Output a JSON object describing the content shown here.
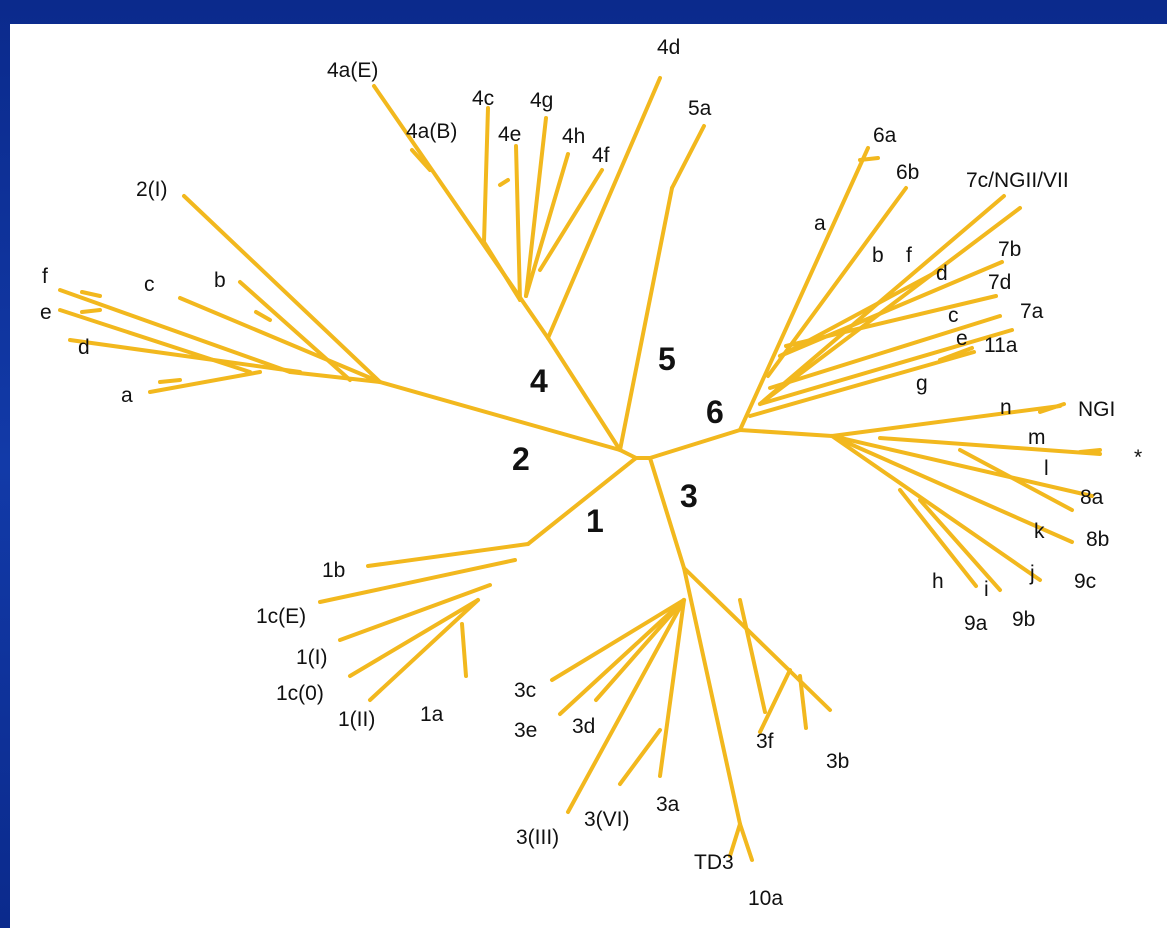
{
  "tree": {
    "branch_color": "#f2b81e",
    "background": "#ffffff",
    "frame_color": "#123aa8",
    "clades": {
      "c1": "1",
      "c2": "2",
      "c3": "3",
      "c4": "4",
      "c5": "5",
      "c6": "6"
    },
    "leaves": {
      "l_1b": "1b",
      "l_1cE": "1c(E)",
      "l_1I": "1(I)",
      "l_1c0": "1c(0)",
      "l_1II": "1(II)",
      "l_1a": "1a",
      "l_2I": "2(I)",
      "l_2f": "f",
      "l_2e": "e",
      "l_2d": "d",
      "l_2c": "c",
      "l_2b": "b",
      "l_2a": "a",
      "l_4aE": "4a(E)",
      "l_4aB": "4a(B)",
      "l_4c": "4c",
      "l_4e": "4e",
      "l_4g": "4g",
      "l_4h": "4h",
      "l_4f": "4f",
      "l_4d": "4d",
      "l_5a": "5a",
      "l_6a": "6a",
      "l_6b": "6b",
      "l_6la": "a",
      "l_6lb": "b",
      "l_6lf": "f",
      "l_7c": "7c/NGII/VII",
      "l_7b": "7b",
      "l_6ld": "d",
      "l_7d": "7d",
      "l_6lc": "c",
      "l_7a": "7a",
      "l_6le": "e",
      "l_11a": "11a",
      "l_6lg": "g",
      "l_6ln": "n",
      "l_NGI": "NGI",
      "l_6lm": "m",
      "l_star": "*",
      "l_6ll": "l",
      "l_8a": "8a",
      "l_6lk": "k",
      "l_8b": "8b",
      "l_6lj": "j",
      "l_9c": "9c",
      "l_6lh": "h",
      "l_6li": "i",
      "l_9a": "9a",
      "l_9b": "9b",
      "l_3c": "3c",
      "l_3e": "3e",
      "l_3d": "3d",
      "l_3f": "3f",
      "l_3b": "3b",
      "l_3III": "3(III)",
      "l_3VI": "3(VI)",
      "l_3a": "3a",
      "l_TD3": "TD3",
      "l_10a": "10a"
    }
  }
}
